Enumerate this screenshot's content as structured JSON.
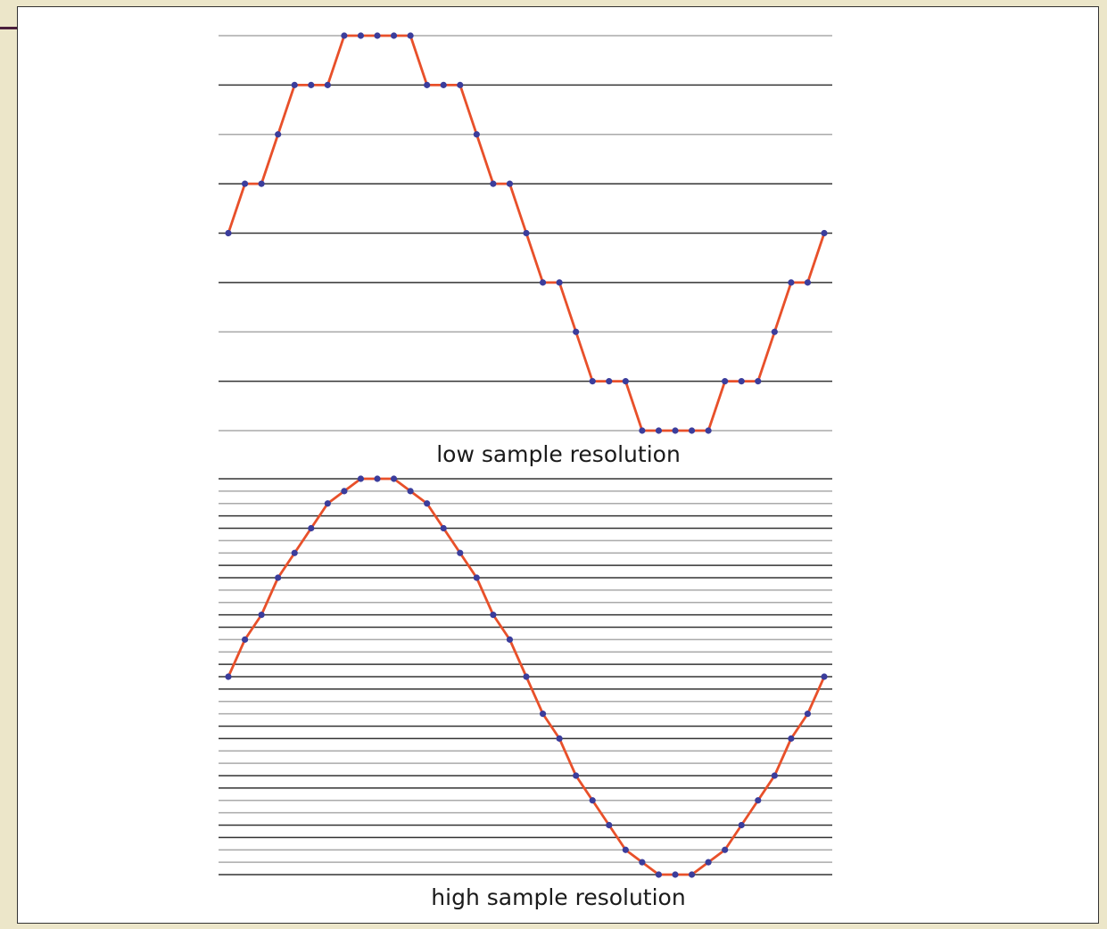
{
  "colors": {
    "background": "#ece6c9",
    "panel": "#ffffff",
    "line": "#e8502a",
    "marker": "#3b3d9c",
    "grid_major": "#333333",
    "grid_minor": "#aaaaaa"
  },
  "chart_data": [
    {
      "type": "line",
      "title": "low sample resolution",
      "quantization_levels": [
        -4,
        4
      ],
      "grid": true,
      "series": [
        {
          "values": [
            0,
            1,
            1,
            2,
            3,
            3,
            3,
            4,
            4,
            4,
            4,
            4,
            3,
            3,
            3,
            2,
            1,
            1,
            0,
            -1,
            -1,
            -2,
            -3,
            -3,
            -3,
            -4,
            -4,
            -4,
            -4,
            -4,
            -3,
            -3,
            -3,
            -2,
            -1,
            -1,
            0
          ]
        }
      ]
    },
    {
      "type": "line",
      "title": "high sample resolution",
      "quantization_levels": [
        -16,
        16
      ],
      "grid": true,
      "series": [
        {
          "values": [
            0,
            3,
            5,
            8,
            10,
            12,
            14,
            15,
            16,
            16,
            16,
            15,
            14,
            12,
            10,
            8,
            5,
            3,
            0,
            -3,
            -5,
            -8,
            -10,
            -12,
            -14,
            -15,
            -16,
            -16,
            -16,
            -15,
            -14,
            -12,
            -10,
            -8,
            -5,
            -3,
            0
          ]
        }
      ]
    }
  ]
}
